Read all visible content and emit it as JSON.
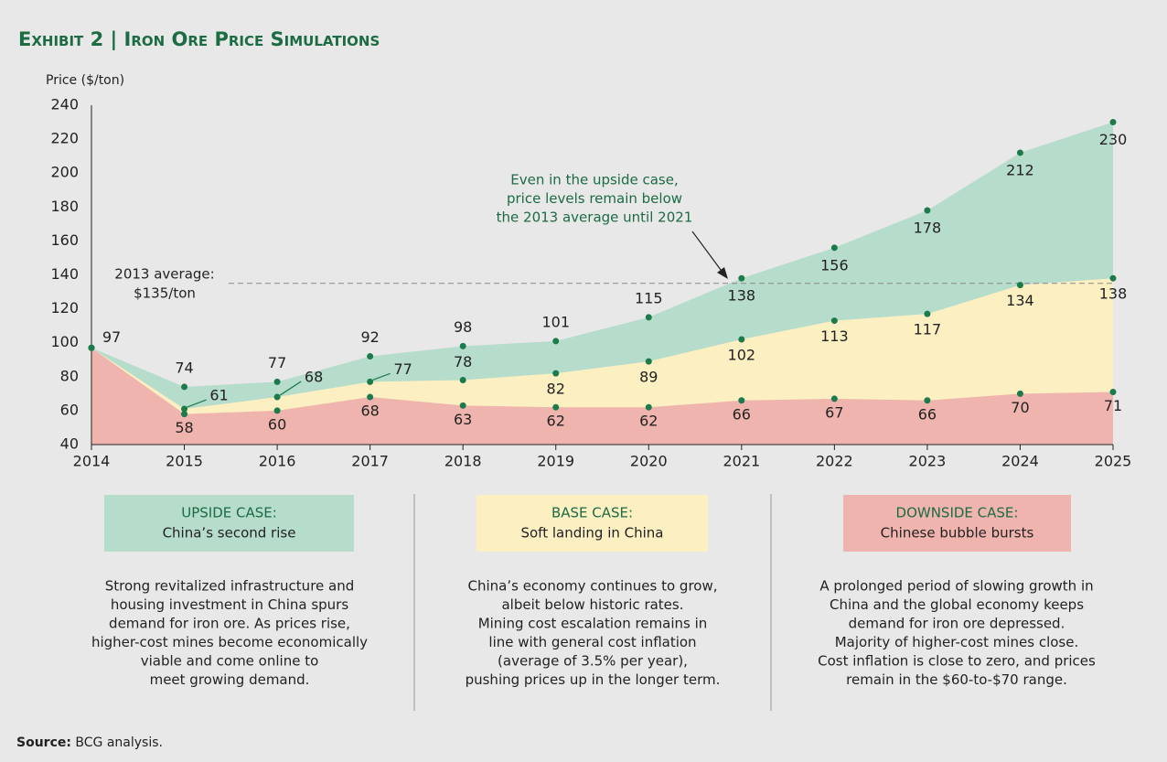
{
  "chart_data": {
    "type": "area",
    "title": "Exhibit 2 | Iron Ore Price Simulations",
    "y_label": "Price ($/ton)",
    "categories": [
      "2014",
      "2015",
      "2016",
      "2017",
      "2018",
      "2019",
      "2020",
      "2021",
      "2022",
      "2023",
      "2024",
      "2025"
    ],
    "ylim": [
      40,
      240
    ],
    "yticks": [
      40,
      60,
      80,
      100,
      120,
      140,
      160,
      180,
      200,
      220,
      240
    ],
    "grid": false,
    "marker_color": "#1c7a4b",
    "reference_line": {
      "value": 135,
      "label": [
        "2013 average:",
        "$135/ton"
      ]
    },
    "annotation": [
      "Even in the upside case,",
      "price levels remain below",
      "the 2013 average until 2021"
    ],
    "series": [
      {
        "name": "UPSIDE CASE:",
        "subtitle": "China’s second rise",
        "color": "#b6dccb",
        "values": [
          97,
          74,
          77,
          92,
          98,
          101,
          115,
          138,
          156,
          178,
          212,
          230
        ],
        "description": [
          "Strong revitalized infrastructure and",
          "housing investment in China spurs",
          "demand for iron ore. As prices rise,",
          "higher-cost mines become economically",
          "viable and come online to",
          "meet growing demand."
        ]
      },
      {
        "name": "BASE CASE:",
        "subtitle": "Soft landing in China",
        "color": "#fcefc2",
        "values": [
          97,
          61,
          68,
          77,
          78,
          82,
          89,
          102,
          113,
          117,
          134,
          138
        ],
        "description": [
          "China’s economy continues to grow,",
          "albeit below historic rates.",
          "Mining cost escalation remains in",
          "line with general cost inflation",
          "(average of 3.5% per year),",
          "pushing prices up in the longer term."
        ]
      },
      {
        "name": "DOWNSIDE CASE:",
        "subtitle": "Chinese bubble bursts",
        "color": "#f0b4ae",
        "values": [
          97,
          58,
          60,
          68,
          63,
          62,
          62,
          66,
          67,
          66,
          70,
          71
        ],
        "description": [
          "A prolonged period of slowing growth in",
          "China and the global economy keeps",
          "demand for iron ore depressed.",
          "Majority of higher-cost mines close.",
          "Cost inflation is close to zero, and prices",
          "remain in the $60-to-$70 range."
        ]
      }
    ],
    "source": {
      "label": "Source:",
      "text": "BCG analysis."
    }
  }
}
